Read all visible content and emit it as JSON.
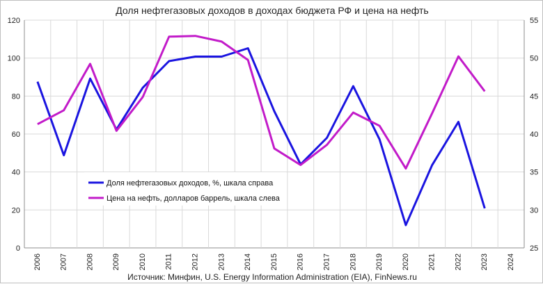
{
  "chart_data": {
    "type": "line",
    "title": "Доля нефтегазовых доходов в доходах бюджета РФ и цена на нефть",
    "categories": [
      "2006",
      "2007",
      "2008",
      "2009",
      "2010",
      "2011",
      "2012",
      "2013",
      "2014",
      "2015",
      "2016",
      "2017",
      "2018",
      "2019",
      "2020",
      "2021",
      "2022",
      "2023",
      "2024"
    ],
    "y_left": {
      "min": 0,
      "max": 120,
      "ticks": [
        0,
        20,
        40,
        60,
        80,
        100,
        120
      ]
    },
    "y_right": {
      "min": 25,
      "max": 55,
      "ticks": [
        25,
        30,
        35,
        40,
        45,
        50,
        55
      ]
    },
    "grid": true,
    "legend_position": "lower-left",
    "series": [
      {
        "name": "Доля нефтегазовых доходов, %, шкала справа",
        "color": "#1a14e0",
        "axis": "right",
        "values": [
          46.9,
          37.2,
          47.3,
          40.6,
          46.1,
          49.6,
          50.2,
          50.2,
          51.3,
          43.0,
          36.0,
          39.5,
          46.3,
          39.3,
          28.0,
          35.9,
          41.6,
          30.2,
          null
        ]
      },
      {
        "name": "Цена на нефть, долларов баррель, шкала слева",
        "color": "#c21bc9",
        "axis": "left",
        "values": [
          65.2,
          72.5,
          97.0,
          61.7,
          79.5,
          111.3,
          111.7,
          108.7,
          99.0,
          52.4,
          43.7,
          54.3,
          71.3,
          64.3,
          41.8,
          70.9,
          100.9,
          82.5,
          null
        ]
      }
    ],
    "source": "Источник: Минфин, U.S. Energy Information Administration (EIA), FinNews.ru"
  }
}
